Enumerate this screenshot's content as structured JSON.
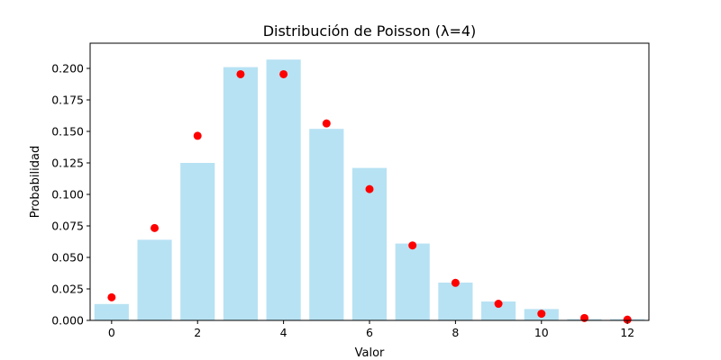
{
  "chart_data": {
    "type": "bar",
    "title": "Distribución de Poisson (λ=4)",
    "xlabel": "Valor",
    "ylabel": "Probabilidad",
    "xlim": [
      -0.5,
      12.5
    ],
    "ylim": [
      0,
      0.22
    ],
    "xticks": [
      0,
      2,
      4,
      6,
      8,
      10,
      12
    ],
    "yticks": [
      0.0,
      0.025,
      0.05,
      0.075,
      0.1,
      0.125,
      0.15,
      0.175,
      0.2
    ],
    "grid": false,
    "x": [
      0,
      1,
      2,
      3,
      4,
      5,
      6,
      7,
      8,
      9,
      10,
      11,
      12
    ],
    "series": [
      {
        "kind": "bar",
        "color": "#87ceeb",
        "values": [
          0.013,
          0.064,
          0.125,
          0.201,
          0.207,
          0.152,
          0.121,
          0.061,
          0.03,
          0.015,
          0.009,
          0.001,
          0.001
        ]
      },
      {
        "kind": "scatter",
        "color": "#ff0000",
        "values": [
          0.0183,
          0.0733,
          0.1465,
          0.1954,
          0.1954,
          0.1563,
          0.1042,
          0.0595,
          0.0298,
          0.0132,
          0.0053,
          0.0019,
          0.0006
        ]
      }
    ]
  }
}
